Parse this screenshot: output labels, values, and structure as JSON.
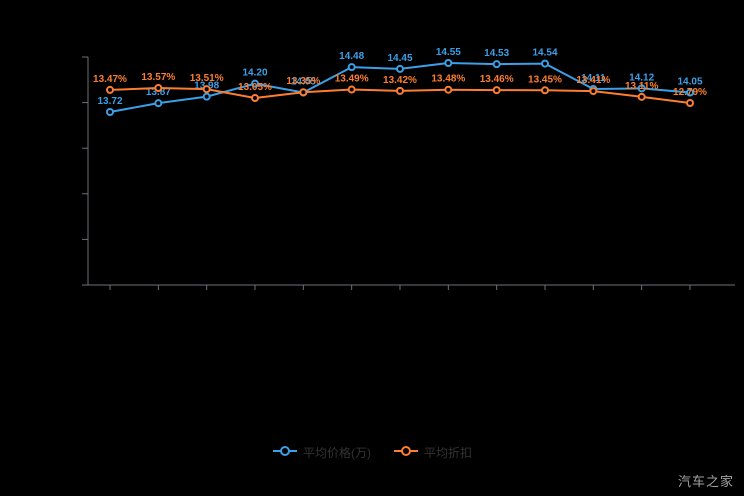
{
  "page": {
    "background": "#000000"
  },
  "chart_data": {
    "type": "line",
    "title": "",
    "num_points": 13,
    "categories": null,
    "x_axis_labels_visible": false,
    "y_axis_labels_visible": false,
    "grid": false,
    "legend_position": "bottom",
    "axis_color": "#6E7079",
    "series": [
      {
        "name": "平均价格(万)",
        "color": "#3aa0e8",
        "label_suffix": "",
        "values": [
          13.72,
          13.87,
          13.98,
          14.2,
          14.05,
          14.48,
          14.45,
          14.55,
          14.53,
          14.54,
          14.11,
          14.12,
          14.05
        ]
      },
      {
        "name": "平均折扣",
        "color": "#fd7e2f",
        "label_suffix": "%",
        "values": [
          13.47,
          13.57,
          13.51,
          13.05,
          13.35,
          13.49,
          13.42,
          13.48,
          13.46,
          13.45,
          13.41,
          13.11,
          12.79
        ]
      }
    ]
  },
  "watermark": "汽车之家"
}
